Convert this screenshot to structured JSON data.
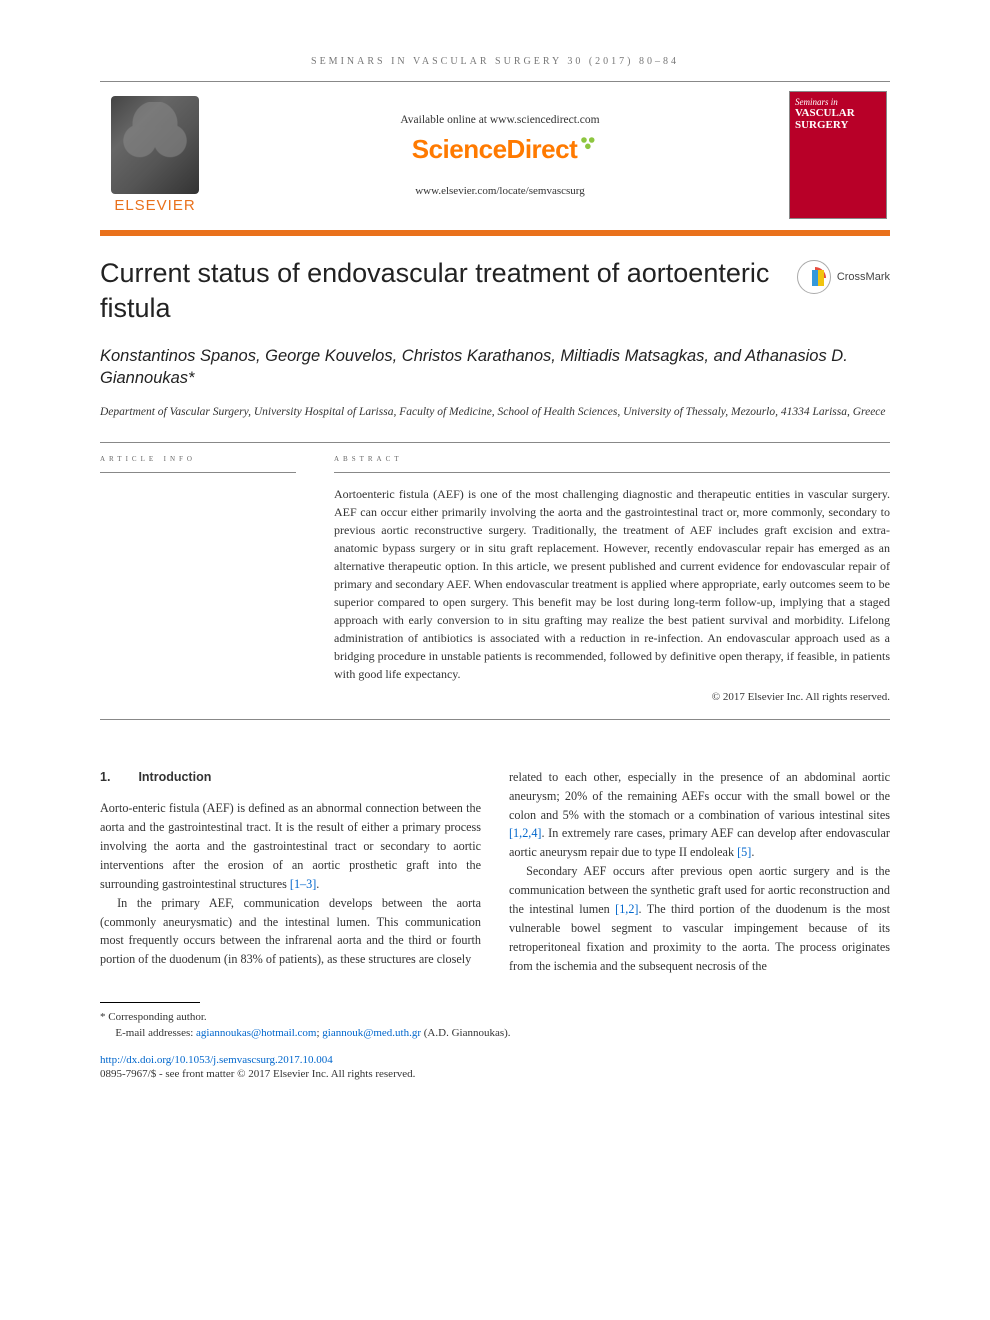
{
  "running_head": "SEMINARS IN VASCULAR SURGERY 30 (2017) 80–84",
  "header": {
    "available_line": "Available online at www.sciencedirect.com",
    "sd_logo_text": "ScienceDirect",
    "journal_site": "www.elsevier.com/locate/semvascsurg",
    "elsevier_word": "ELSEVIER",
    "cover_title_line1": "Seminars in",
    "cover_title_line2": "VASCULAR",
    "cover_title_line3": "SURGERY"
  },
  "article": {
    "title": "Current status of endovascular treatment of aortoenteric fistula",
    "crossmark_label": "CrossMark",
    "authors": "Konstantinos Spanos, George Kouvelos, Christos Karathanos, Miltiadis Matsagkas, and Athanasios D. Giannoukas*",
    "affiliation": "Department of Vascular Surgery, University Hospital of Larissa, Faculty of Medicine, School of Health Sciences, University of Thessaly, Mezourlo, 41334 Larissa, Greece",
    "info_heading": "article info",
    "abstract_heading": "abstract",
    "abstract": "Aortoenteric fistula (AEF) is one of the most challenging diagnostic and therapeutic entities in vascular surgery. AEF can occur either primarily involving the aorta and the gastrointestinal tract or, more commonly, secondary to previous aortic reconstructive surgery. Traditionally, the treatment of AEF includes graft excision and extra-anatomic bypass surgery or in situ graft replacement. However, recently endovascular repair has emerged as an alternative therapeutic option. In this article, we present published and current evidence for endovascular repair of primary and secondary AEF. When endovascular treatment is applied where appropriate, early outcomes seem to be superior compared to open surgery. This benefit may be lost during long-term follow-up, implying that a staged approach with early conversion to in situ grafting may realize the best patient survival and morbidity. Lifelong administration of antibiotics is associated with a reduction in re-infection. An endovascular approach used as a bridging procedure in unstable patients is recommended, followed by definitive open therapy, if feasible, in patients with good life expectancy.",
    "copyright": "© 2017 Elsevier Inc. All rights reserved."
  },
  "section": {
    "number": "1.",
    "title": "Introduction",
    "p1": "Aorto-enteric fistula (AEF) is defined as an abnormal connection between the aorta and the gastrointestinal tract. It is the result of either a primary process involving the aorta and the gastrointestinal tract or secondary to aortic interventions after the erosion of an aortic prosthetic graft into the surrounding gastrointestinal structures ",
    "p1_ref": "[1–3]",
    "p1_tail": ".",
    "p2": "In the primary AEF, communication develops between the aorta (commonly aneurysmatic) and the intestinal lumen. This communication most frequently occurs between the infrarenal aorta and the third or fourth portion of the duodenum (in 83% of patients), as these structures are closely",
    "p3_lead": "related to each other, especially in the presence of an abdominal aortic aneurysm; 20% of the remaining AEFs occur with the small bowel or the colon and 5% with the stomach or a combination of various intestinal sites ",
    "p3_ref1": "[1,2,4]",
    "p3_mid": ". In extremely rare cases, primary AEF can develop after endovascular aortic aneurysm repair due to type II endoleak ",
    "p3_ref2": "[5]",
    "p3_tail": ".",
    "p4_lead": "Secondary AEF occurs after previous open aortic surgery and is the communication between the synthetic graft used for aortic reconstruction and the intestinal lumen ",
    "p4_ref": "[1,2]",
    "p4_tail": ". The third portion of the duodenum is the most vulnerable bowel segment to vascular impingement because of its retroperitoneal fixation and proximity to the aorta. The process originates from the ischemia and the subsequent necrosis of the"
  },
  "footnotes": {
    "corresponding": "* Corresponding author.",
    "emails_label": "E-mail addresses: ",
    "email1": "agiannoukas@hotmail.com",
    "email_sep": "; ",
    "email2": "giannouk@med.uth.gr",
    "emails_tail": " (A.D. Giannoukas).",
    "doi": "http://dx.doi.org/10.1053/j.semvascsurg.2017.10.004",
    "issn_line": "0895-7967/$ - see front matter © 2017 Elsevier Inc. All rights reserved."
  },
  "colors": {
    "orange": "#e9711c",
    "sd_orange": "#ff7a00",
    "link": "#0066cc",
    "cover_bg": "#b80028"
  }
}
